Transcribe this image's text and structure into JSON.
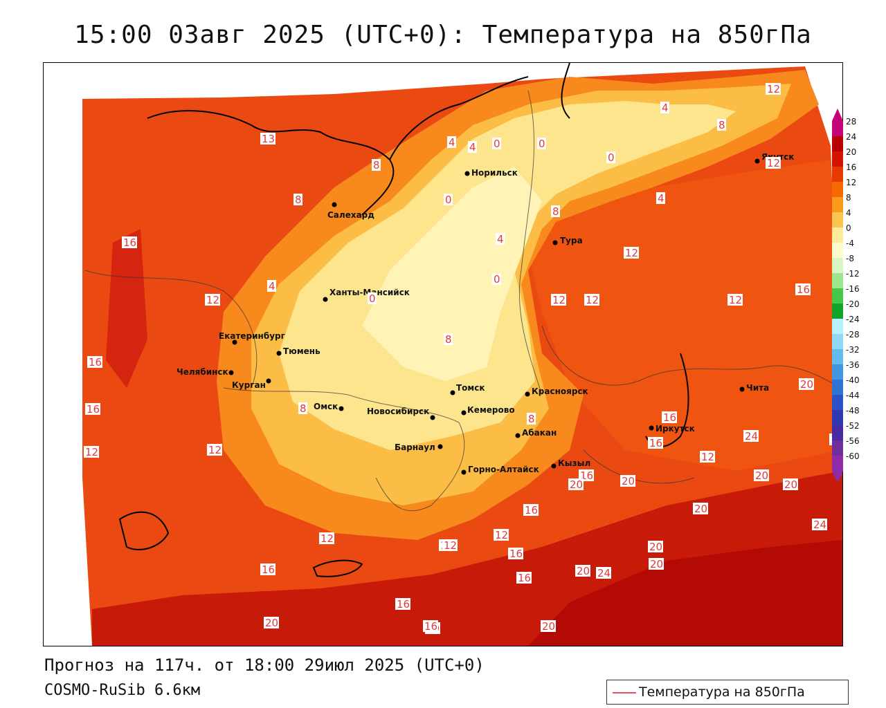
{
  "title": "15:00 03авг 2025 (UTC+0): Температура на 850гПа",
  "forecast": "Прогноз на 117ч. от 18:00 29июл 2025 (UTC+0)",
  "model": "COSMO-RuSib 6.6км",
  "legend": {
    "label": "Температура на 850гПа",
    "line_color": "#e8505a"
  },
  "colorbar": {
    "ticks": [
      "28",
      "24",
      "20",
      "16",
      "12",
      "8",
      "4",
      "0",
      "-4",
      "-8",
      "-12",
      "-16",
      "-20",
      "-24",
      "-28",
      "-32",
      "-36",
      "-40",
      "-44",
      "-48",
      "-52",
      "-56",
      "-60"
    ],
    "colors": [
      "#c4007a",
      "#b80000",
      "#d21400",
      "#e83a00",
      "#f56a00",
      "#f99a1a",
      "#fcc552",
      "#fdeb99",
      "#fffccc",
      "#d8f5c4",
      "#9be68f",
      "#45c847",
      "#10a32a",
      "#b6f0ff",
      "#8fd9f5",
      "#63bcef",
      "#3d98e0",
      "#2f73d3",
      "#2b52c6",
      "#2f38b0",
      "#4a2aa0",
      "#6f2d9e",
      "#8e2bab"
    ]
  },
  "cities": [
    {
      "name": "Норильск"
    },
    {
      "name": "Якутск"
    },
    {
      "name": "Салехард"
    },
    {
      "name": "Тура"
    },
    {
      "name": "Ханты-Мансийск"
    },
    {
      "name": "Екатеринбург"
    },
    {
      "name": "Тюмень"
    },
    {
      "name": "Челябинск"
    },
    {
      "name": "Курган"
    },
    {
      "name": "Омск"
    },
    {
      "name": "Новосибирск"
    },
    {
      "name": "Томск"
    },
    {
      "name": "Кемерово"
    },
    {
      "name": "Красноярск"
    },
    {
      "name": "Абакан"
    },
    {
      "name": "Барнаул"
    },
    {
      "name": "Горно-Алтайск"
    },
    {
      "name": "Кызыл"
    },
    {
      "name": "Иркутск"
    },
    {
      "name": "Чита"
    }
  ],
  "contour_labels": [
    "12",
    "13",
    "8",
    "4",
    "4",
    "0",
    "0",
    "0",
    "4",
    "8",
    "12",
    "16",
    "12",
    "8",
    "12",
    "4",
    "0",
    "12",
    "0",
    "4",
    "16",
    "16",
    "12",
    "12",
    "4",
    "8",
    "0",
    "8",
    "12",
    "12",
    "16",
    "20",
    "16",
    "20",
    "16",
    "20",
    "20",
    "20",
    "20",
    "24",
    "24",
    "20",
    "20",
    "16",
    "12",
    "16",
    "12",
    "16",
    "20",
    "20",
    "16",
    "16",
    "24",
    "20",
    "16",
    "12",
    "12",
    "8",
    "8",
    "16",
    "12",
    "16",
    "20"
  ]
}
